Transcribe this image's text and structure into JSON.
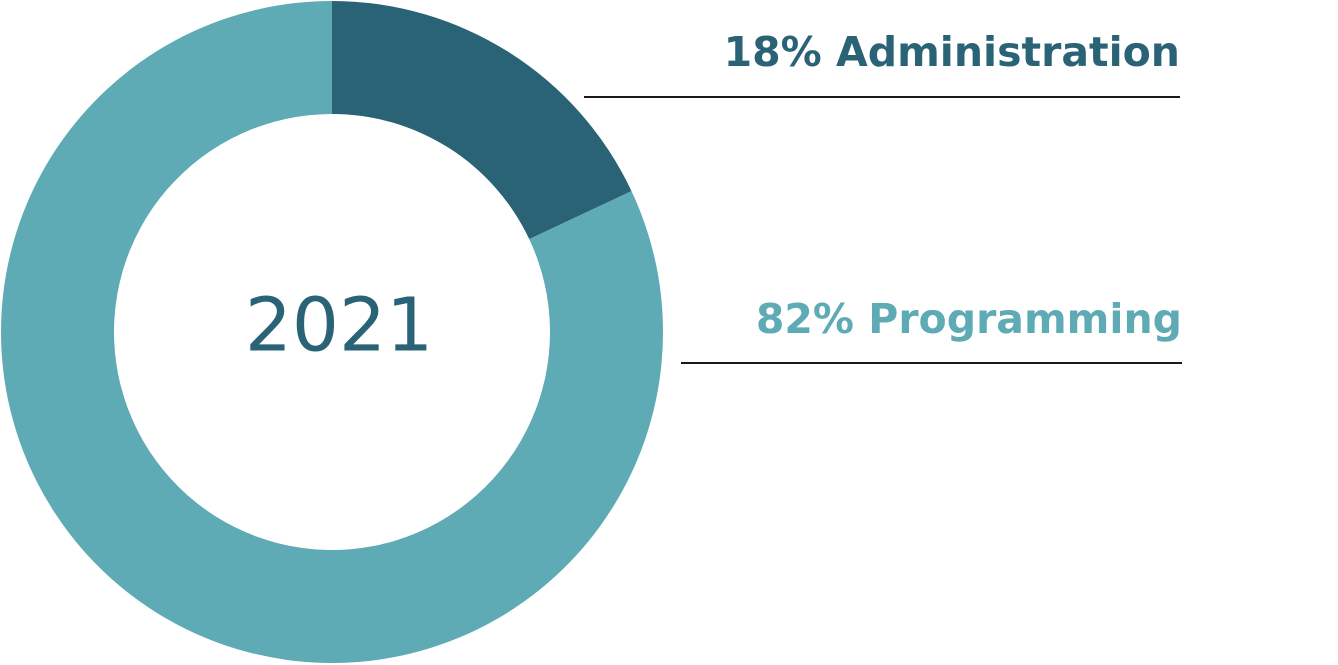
{
  "chart_data": {
    "type": "pie",
    "variant": "donut",
    "center_label": "2021",
    "categories": [
      "Administration",
      "Programming"
    ],
    "values": [
      18,
      82
    ],
    "labels": [
      "18% Administration",
      "82% Programming"
    ],
    "colors": [
      "#2a6376",
      "#5eaab5"
    ],
    "center_label_color": "#2a6376",
    "leader_line_color": "#1a1a1a",
    "start_angle_deg": 0,
    "direction": "clockwise",
    "legend": "none"
  }
}
